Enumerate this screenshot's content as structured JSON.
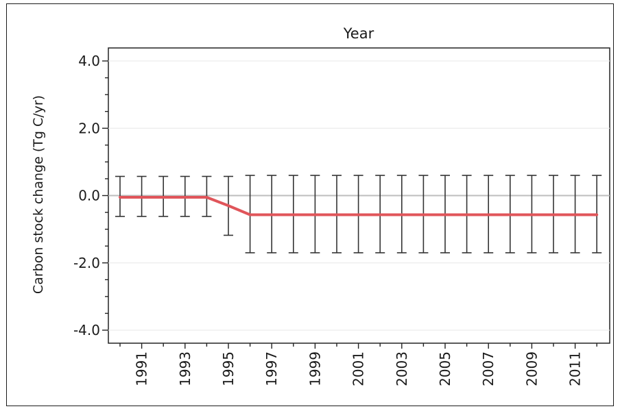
{
  "chart_data": {
    "type": "line",
    "title": "Year",
    "xlabel": "",
    "ylabel": "Carbon stock change (Tg C/yr)",
    "x": [
      1990,
      1991,
      1992,
      1993,
      1994,
      1995,
      1996,
      1997,
      1998,
      1999,
      2000,
      2001,
      2002,
      2003,
      2004,
      2005,
      2006,
      2007,
      2008,
      2009,
      2010,
      2011,
      2012
    ],
    "series": [
      {
        "values": [
          -0.05,
          -0.05,
          -0.05,
          -0.05,
          -0.05,
          -0.3,
          -0.57,
          -0.57,
          -0.57,
          -0.57,
          -0.57,
          -0.57,
          -0.57,
          -0.57,
          -0.57,
          -0.57,
          -0.57,
          -0.57,
          -0.57,
          -0.57,
          -0.57,
          -0.57,
          -0.57
        ],
        "error_low": [
          -0.62,
          -0.62,
          -0.62,
          -0.62,
          -0.62,
          -1.18,
          -1.7,
          -1.7,
          -1.7,
          -1.7,
          -1.7,
          -1.7,
          -1.7,
          -1.7,
          -1.7,
          -1.7,
          -1.7,
          -1.7,
          -1.7,
          -1.7,
          -1.7,
          -1.7,
          -1.7
        ],
        "error_high": [
          0.57,
          0.57,
          0.57,
          0.57,
          0.57,
          0.57,
          0.6,
          0.6,
          0.6,
          0.6,
          0.6,
          0.6,
          0.6,
          0.6,
          0.6,
          0.6,
          0.6,
          0.6,
          0.6,
          0.6,
          0.6,
          0.6,
          0.6
        ]
      }
    ],
    "ylim": [
      -4.4,
      4.4
    ],
    "y_ticks": [
      4.0,
      2.0,
      0.0,
      -2.0,
      -4.0
    ],
    "y_tick_labels": [
      "4.0",
      "2.0",
      "0.0",
      "-2.0",
      "-4.0"
    ],
    "x_tick_labels": [
      "1991",
      "1993",
      "1995",
      "1997",
      "1999",
      "2001",
      "2003",
      "2005",
      "2007",
      "2009",
      "2011"
    ],
    "grid": true,
    "colors": {
      "line": "#e0555a",
      "error_bars": "#333333",
      "zero_line": "#bdbdbd",
      "grid": "#ececec"
    }
  }
}
